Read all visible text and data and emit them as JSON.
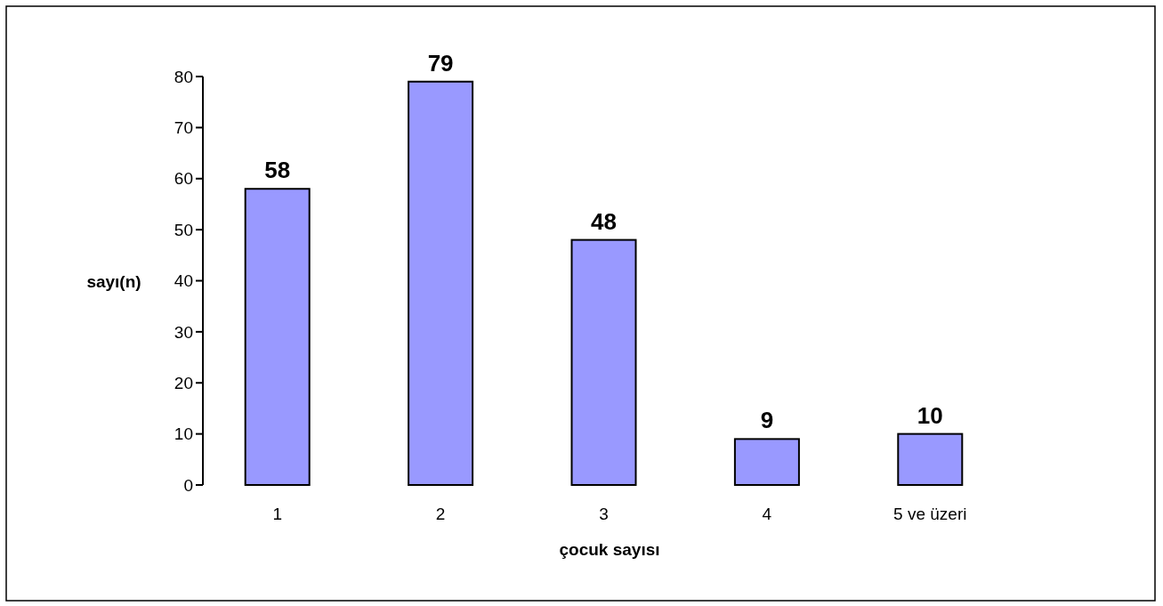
{
  "chart_data": {
    "type": "bar",
    "xlabel": "çocuk sayısı",
    "ylabel": "sayı(n)",
    "categories": [
      "1",
      "2",
      "3",
      "4",
      "5 ve üzeri"
    ],
    "values": [
      58,
      79,
      48,
      9,
      10
    ],
    "color": "#9999ff",
    "ylim": [
      0,
      80
    ],
    "yticks": [
      0,
      10,
      20,
      30,
      40,
      50,
      60,
      70,
      80
    ],
    "grid": false,
    "data_labels": true
  }
}
